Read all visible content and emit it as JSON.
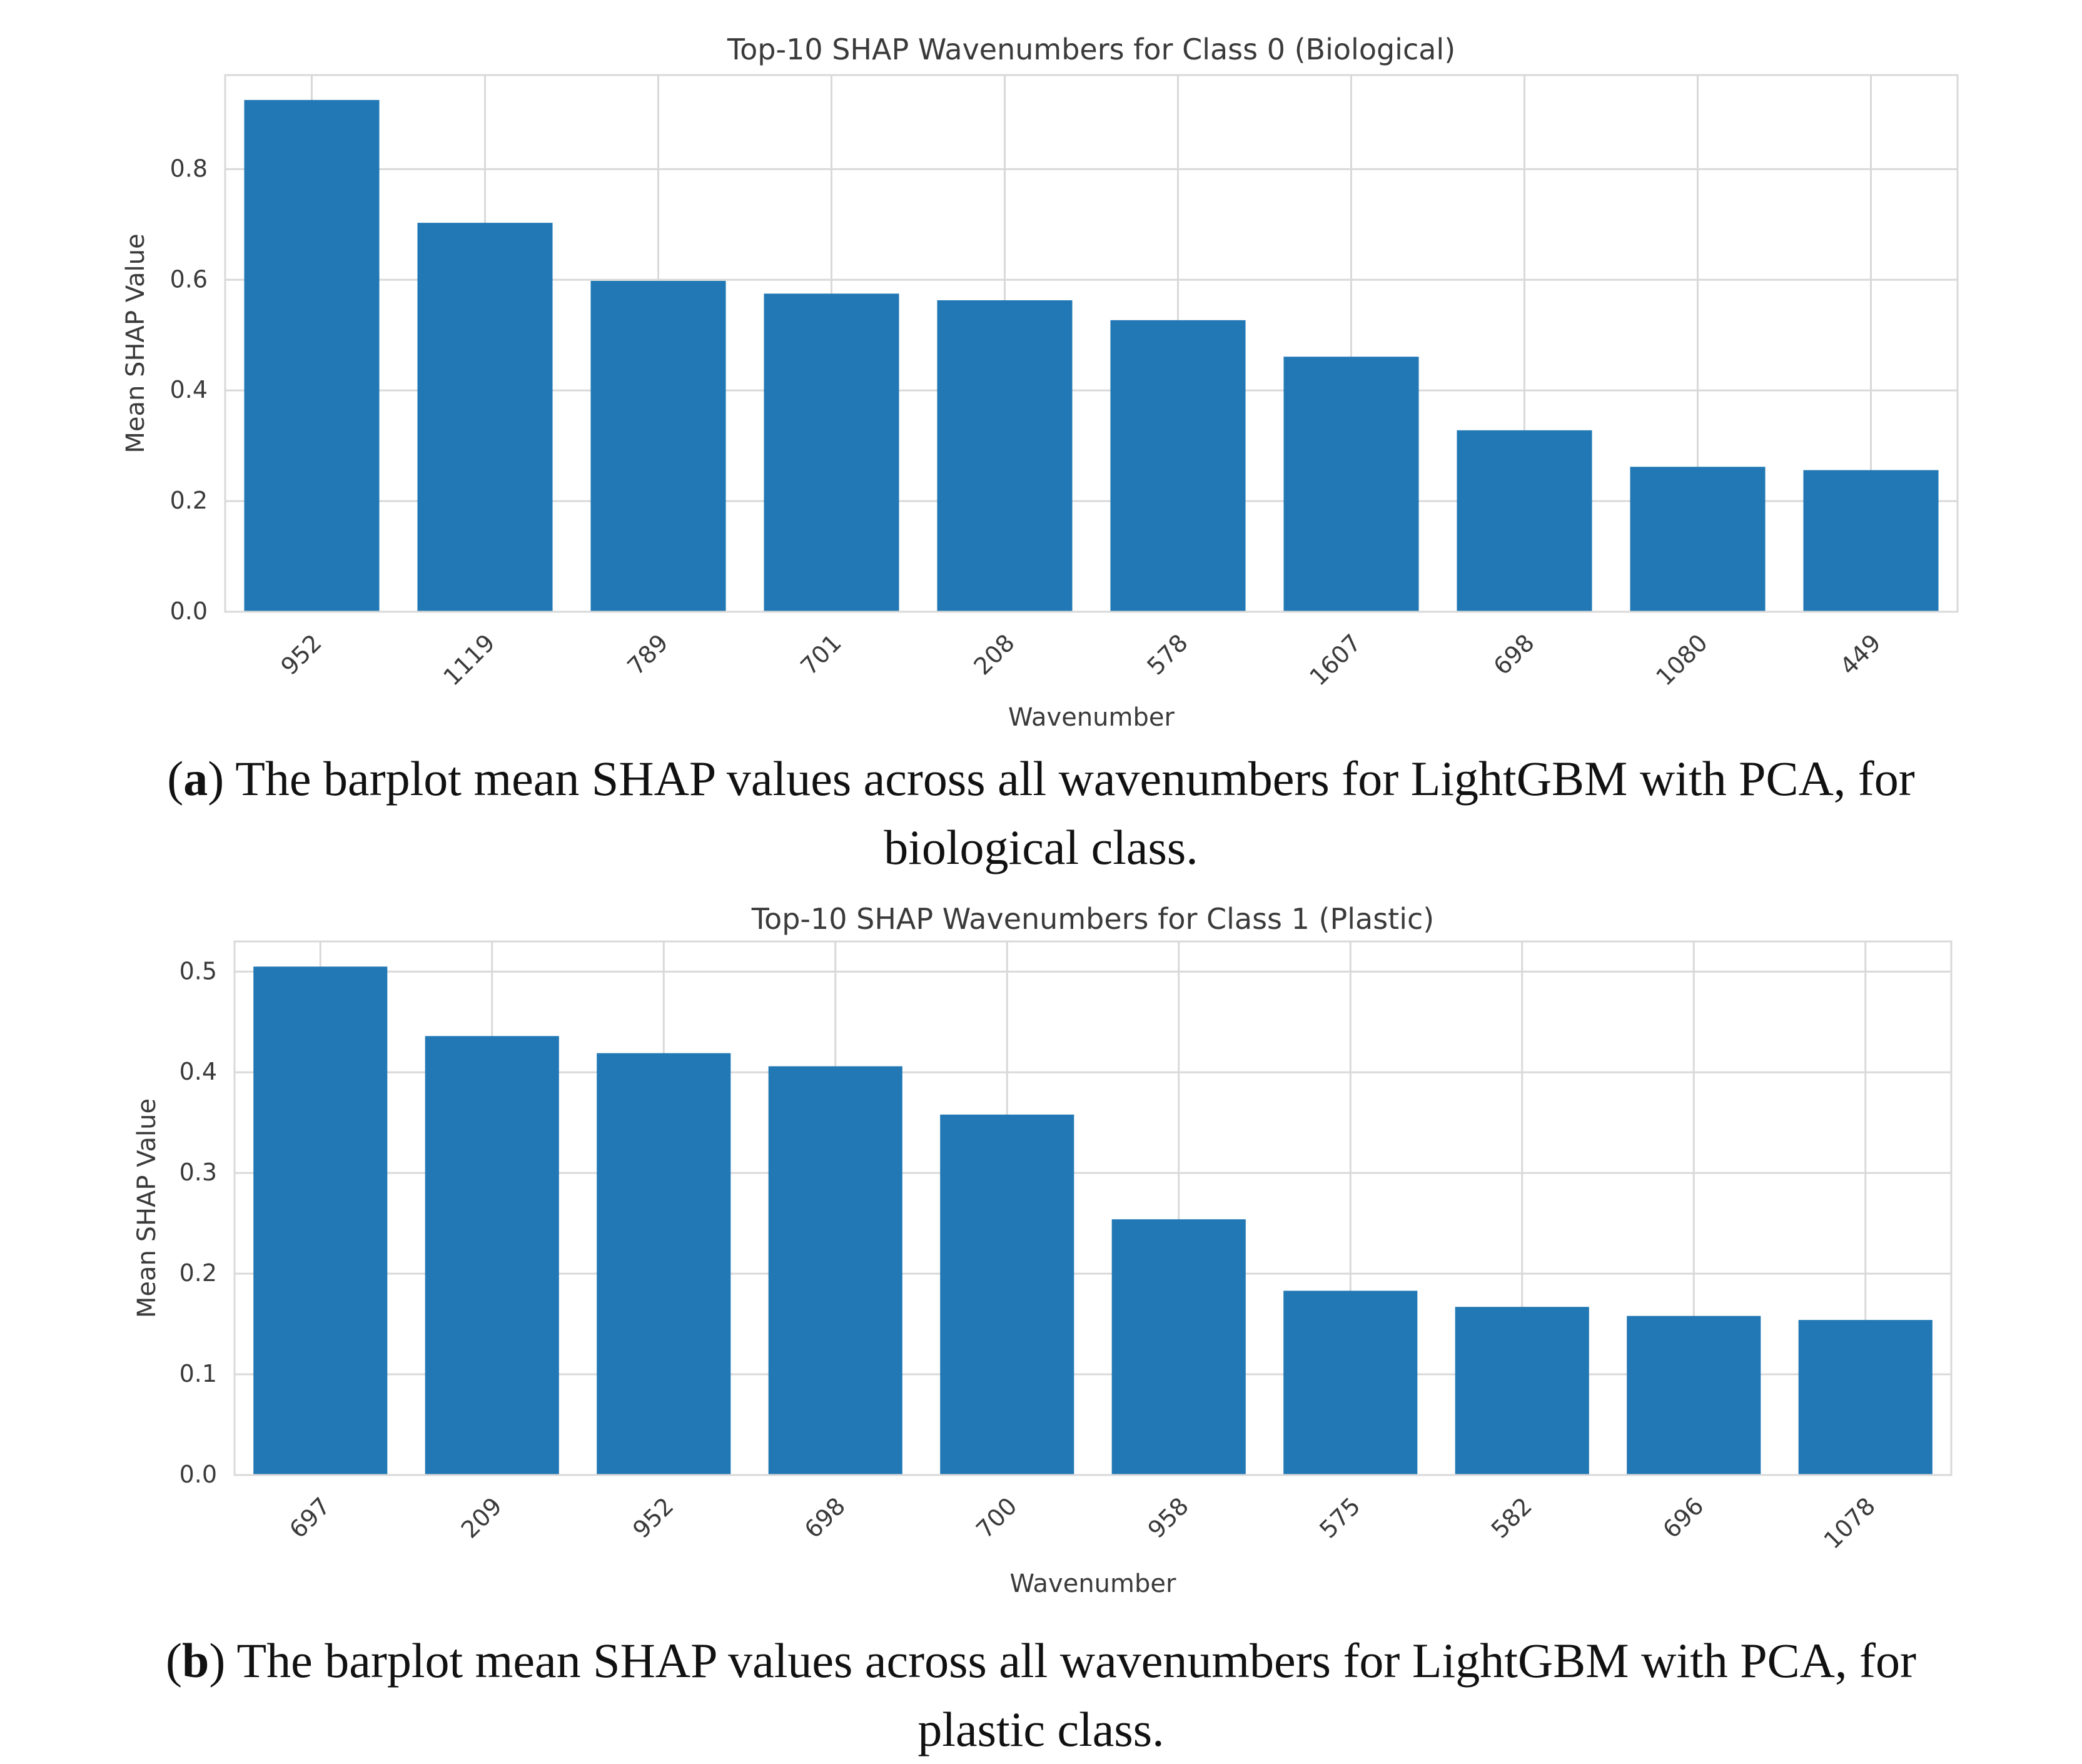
{
  "chart_data": [
    {
      "type": "bar",
      "title": "Top-10 SHAP Wavenumbers for Class 0 (Biological)",
      "xlabel": "Wavenumber",
      "ylabel": "Mean SHAP Value",
      "categories": [
        "952",
        "1119",
        "789",
        "701",
        "208",
        "578",
        "1607",
        "698",
        "1080",
        "449"
      ],
      "values": [
        0.925,
        0.703,
        0.598,
        0.575,
        0.563,
        0.527,
        0.461,
        0.328,
        0.262,
        0.256
      ],
      "ylim": [
        0,
        0.97
      ],
      "yticks": [
        0.0,
        0.2,
        0.4,
        0.6,
        0.8
      ],
      "ytick_labels": [
        "0.0",
        "0.2",
        "0.4",
        "0.6",
        "0.8"
      ],
      "grid": true,
      "bar_color": "#2178b4"
    },
    {
      "type": "bar",
      "title": "Top-10 SHAP Wavenumbers for Class 1 (Plastic)",
      "xlabel": "Wavenumber",
      "ylabel": "Mean SHAP Value",
      "categories": [
        "697",
        "209",
        "952",
        "698",
        "700",
        "958",
        "575",
        "582",
        "696",
        "1078"
      ],
      "values": [
        0.505,
        0.436,
        0.419,
        0.406,
        0.358,
        0.254,
        0.183,
        0.167,
        0.158,
        0.154
      ],
      "ylim": [
        0,
        0.53
      ],
      "yticks": [
        0.0,
        0.1,
        0.2,
        0.3,
        0.4,
        0.5
      ],
      "ytick_labels": [
        "0.0",
        "0.1",
        "0.2",
        "0.3",
        "0.4",
        "0.5"
      ],
      "grid": true,
      "bar_color": "#2178b4"
    }
  ],
  "captions": [
    {
      "tag": "a",
      "open": "(",
      "close": ")",
      "text": " The barplot mean SHAP values across all wavenumbers for LightGBM with PCA, for",
      "line2": "biological class."
    },
    {
      "tag": "b",
      "open": "(",
      "close": ")",
      "text": " The barplot mean SHAP values across all wavenumbers for LightGBM with PCA, for",
      "line2": "plastic class."
    }
  ],
  "colors": {
    "bar": "#2178b4",
    "grid": "#d9d9d9",
    "axis_text": "#3a3a3a"
  }
}
